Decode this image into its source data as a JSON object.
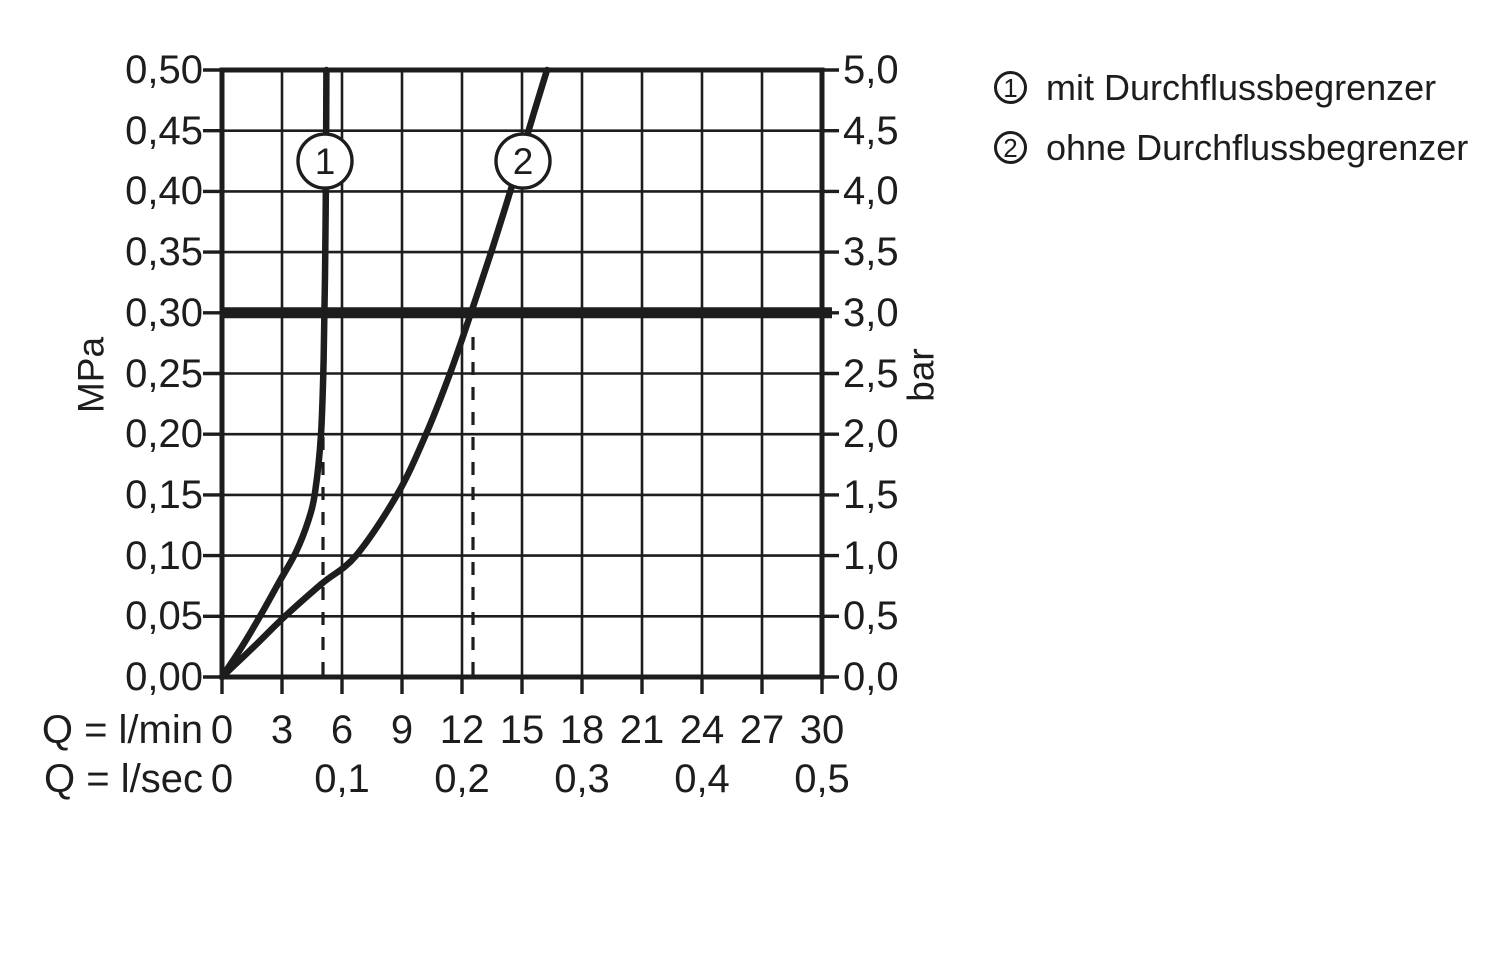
{
  "page": {
    "background": "#ffffff",
    "ink": "#1d1d1d"
  },
  "chart_data": {
    "type": "line",
    "title": "",
    "grid": true,
    "axis_ranges": {
      "q_lmin": [
        0,
        30
      ],
      "p_mpa": [
        0,
        0.5
      ],
      "p_bar": [
        0,
        5.0
      ]
    },
    "y_axis_left": {
      "unit": "MPa",
      "ticks": [
        {
          "p": 0.0,
          "label": "0,00"
        },
        {
          "p": 0.05,
          "label": "0,05"
        },
        {
          "p": 0.1,
          "label": "0,10"
        },
        {
          "p": 0.15,
          "label": "0,15"
        },
        {
          "p": 0.2,
          "label": "0,20"
        },
        {
          "p": 0.25,
          "label": "0,25"
        },
        {
          "p": 0.3,
          "label": "0,30"
        },
        {
          "p": 0.35,
          "label": "0,35"
        },
        {
          "p": 0.4,
          "label": "0,40"
        },
        {
          "p": 0.45,
          "label": "0,45"
        },
        {
          "p": 0.5,
          "label": "0,50"
        }
      ]
    },
    "y_axis_right": {
      "unit": "bar",
      "ticks": [
        {
          "p": 0.0,
          "label": "0,0"
        },
        {
          "p": 0.05,
          "label": "0,5"
        },
        {
          "p": 0.1,
          "label": "1,0"
        },
        {
          "p": 0.15,
          "label": "1,5"
        },
        {
          "p": 0.2,
          "label": "2,0"
        },
        {
          "p": 0.25,
          "label": "2,5"
        },
        {
          "p": 0.3,
          "label": "3,0"
        },
        {
          "p": 0.35,
          "label": "3,5"
        },
        {
          "p": 0.4,
          "label": "4,0"
        },
        {
          "p": 0.45,
          "label": "4,5"
        },
        {
          "p": 0.5,
          "label": "5,0"
        }
      ]
    },
    "x_axis_primary": {
      "unit_label": "Q = l/min",
      "ticks": [
        {
          "q": 0,
          "label": "0"
        },
        {
          "q": 3,
          "label": "3"
        },
        {
          "q": 6,
          "label": "6"
        },
        {
          "q": 9,
          "label": "9"
        },
        {
          "q": 12,
          "label": "12"
        },
        {
          "q": 15,
          "label": "15"
        },
        {
          "q": 18,
          "label": "18"
        },
        {
          "q": 21,
          "label": "21"
        },
        {
          "q": 24,
          "label": "24"
        },
        {
          "q": 27,
          "label": "27"
        },
        {
          "q": 30,
          "label": "30"
        }
      ]
    },
    "x_axis_secondary": {
      "unit_label": "Q = l/sec",
      "ticks": [
        {
          "q": 0,
          "label": "0"
        },
        {
          "q": 6,
          "label": "0,1"
        },
        {
          "q": 12,
          "label": "0,2"
        },
        {
          "q": 18,
          "label": "0,3"
        },
        {
          "q": 24,
          "label": "0,4"
        },
        {
          "q": 30,
          "label": "0,5"
        }
      ]
    },
    "reference_line": {
      "p_mpa": 0.3,
      "bar": 3.0
    },
    "series": [
      {
        "id": "1",
        "name": "mit Durchflussbegrenzer",
        "flow_at_3bar_lmin": 5.0,
        "guide": {
          "q_lmin": 5.05,
          "p_top_mpa": 0.3
        },
        "badge": {
          "q": 5.15,
          "p": 0.425,
          "symbol": "1"
        },
        "points_q_p": [
          [
            0,
            0
          ],
          [
            1.0,
            0.025
          ],
          [
            1.9,
            0.05
          ],
          [
            2.85,
            0.078
          ],
          [
            3.7,
            0.103
          ],
          [
            4.3,
            0.128
          ],
          [
            4.65,
            0.152
          ],
          [
            4.95,
            0.2
          ],
          [
            5.08,
            0.26
          ],
          [
            5.15,
            0.33
          ],
          [
            5.2,
            0.42
          ],
          [
            5.22,
            0.5
          ]
        ]
      },
      {
        "id": "2",
        "name": "ohne Durchflussbegrenzer",
        "flow_at_3bar_lmin": 12.5,
        "guide": {
          "q_lmin": 12.55,
          "p_top_mpa": 0.285
        },
        "badge": {
          "q": 15.05,
          "p": 0.425,
          "symbol": "2"
        },
        "points_q_p": [
          [
            0,
            0
          ],
          [
            1.6,
            0.025
          ],
          [
            3.15,
            0.05
          ],
          [
            5.0,
            0.077
          ],
          [
            6.7,
            0.1
          ],
          [
            8.75,
            0.15
          ],
          [
            10.2,
            0.2
          ],
          [
            11.4,
            0.25
          ],
          [
            12.45,
            0.3
          ],
          [
            13.5,
            0.352
          ],
          [
            14.6,
            0.41
          ],
          [
            15.6,
            0.465
          ],
          [
            16.25,
            0.5
          ]
        ]
      }
    ],
    "legend": [
      {
        "symbol": "1",
        "label": "mit Durchflussbegrenzer"
      },
      {
        "symbol": "2",
        "label": "ohne Durchflussbegrenzer"
      }
    ]
  }
}
